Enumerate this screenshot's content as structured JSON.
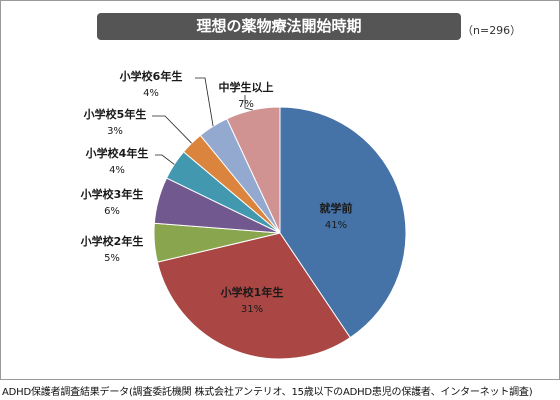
{
  "title": "理想の薬物療法開始時期",
  "sample_note": "（n=296）",
  "source": "ADHD保護者調査結果データ(調査委託機関 株式会社アンテリオ、15歳以下のADHD患児の保護者、インターネット調査)",
  "chart_data": {
    "type": "pie",
    "title": "理想の薬物療法開始時期",
    "sample_note": "（n=296）",
    "slices": [
      {
        "label": "就学前",
        "value": 41,
        "value_label": "41%",
        "color": "#4572a7"
      },
      {
        "label": "小学校1年生",
        "value": 31,
        "value_label": "31%",
        "color": "#aa4643"
      },
      {
        "label": "小学校2年生",
        "value": 5,
        "value_label": "5%",
        "color": "#89a54e"
      },
      {
        "label": "小学校3年生",
        "value": 6,
        "value_label": "6%",
        "color": "#71588f"
      },
      {
        "label": "小学校4年生",
        "value": 4,
        "value_label": "4%",
        "color": "#4198af"
      },
      {
        "label": "小学校5年生",
        "value": 3,
        "value_label": "3%",
        "color": "#db843d"
      },
      {
        "label": "小学校6年生",
        "value": 4,
        "value_label": "4%",
        "color": "#93a9cf"
      },
      {
        "label": "中学生以上",
        "value": 7,
        "value_label": "7%",
        "color": "#d19392"
      }
    ],
    "start_angle": "12 o'clock",
    "direction": "clockwise",
    "legend": "none (labels beside slices)"
  }
}
